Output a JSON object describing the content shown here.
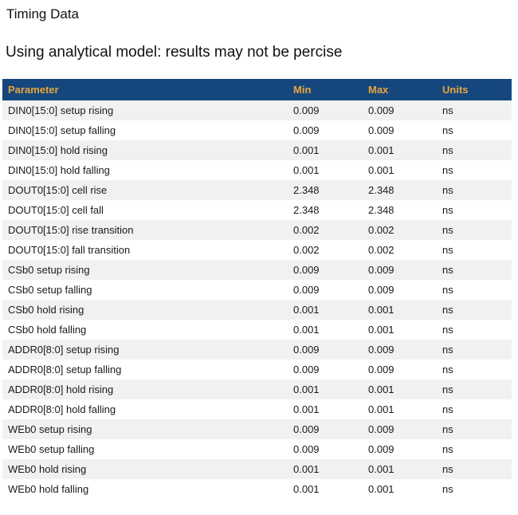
{
  "page": {
    "title": "Timing Data",
    "subtitle": "Using analytical model: results may not be percise"
  },
  "colors": {
    "header_bg": "#15477E",
    "header_text": "#E9A43D",
    "alt_row_bg": "#F0F1F1",
    "body_text": "#1A1A1A"
  },
  "table": {
    "columns": [
      "Parameter",
      "Min",
      "Max",
      "Units"
    ],
    "rows": [
      {
        "parameter": "DIN0[15:0] setup rising",
        "min": "0.009",
        "max": "0.009",
        "units": "ns"
      },
      {
        "parameter": "DIN0[15:0] setup falling",
        "min": "0.009",
        "max": "0.009",
        "units": "ns"
      },
      {
        "parameter": "DIN0[15:0] hold rising",
        "min": "0.001",
        "max": "0.001",
        "units": "ns"
      },
      {
        "parameter": "DIN0[15:0] hold falling",
        "min": "0.001",
        "max": "0.001",
        "units": "ns"
      },
      {
        "parameter": "DOUT0[15:0] cell rise",
        "min": "2.348",
        "max": "2.348",
        "units": "ns"
      },
      {
        "parameter": "DOUT0[15:0] cell fall",
        "min": "2.348",
        "max": "2.348",
        "units": "ns"
      },
      {
        "parameter": "DOUT0[15:0] rise transition",
        "min": "0.002",
        "max": "0.002",
        "units": "ns"
      },
      {
        "parameter": "DOUT0[15:0] fall transition",
        "min": "0.002",
        "max": "0.002",
        "units": "ns"
      },
      {
        "parameter": "CSb0 setup rising",
        "min": "0.009",
        "max": "0.009",
        "units": "ns"
      },
      {
        "parameter": "CSb0 setup falling",
        "min": "0.009",
        "max": "0.009",
        "units": "ns"
      },
      {
        "parameter": "CSb0 hold rising",
        "min": "0.001",
        "max": "0.001",
        "units": "ns"
      },
      {
        "parameter": "CSb0 hold falling",
        "min": "0.001",
        "max": "0.001",
        "units": "ns"
      },
      {
        "parameter": "ADDR0[8:0] setup rising",
        "min": "0.009",
        "max": "0.009",
        "units": "ns"
      },
      {
        "parameter": "ADDR0[8:0] setup falling",
        "min": "0.009",
        "max": "0.009",
        "units": "ns"
      },
      {
        "parameter": "ADDR0[8:0] hold rising",
        "min": "0.001",
        "max": "0.001",
        "units": "ns"
      },
      {
        "parameter": "ADDR0[8:0] hold falling",
        "min": "0.001",
        "max": "0.001",
        "units": "ns"
      },
      {
        "parameter": "WEb0 setup rising",
        "min": "0.009",
        "max": "0.009",
        "units": "ns"
      },
      {
        "parameter": "WEb0 setup falling",
        "min": "0.009",
        "max": "0.009",
        "units": "ns"
      },
      {
        "parameter": "WEb0 hold rising",
        "min": "0.001",
        "max": "0.001",
        "units": "ns"
      },
      {
        "parameter": "WEb0 hold falling",
        "min": "0.001",
        "max": "0.001",
        "units": "ns"
      }
    ]
  }
}
